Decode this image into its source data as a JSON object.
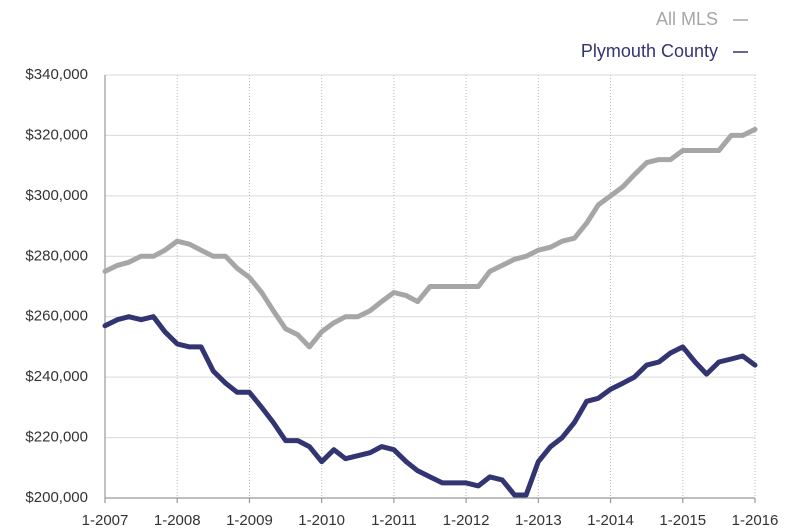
{
  "chart_data": {
    "type": "line",
    "x": [
      2007,
      2007.17,
      2007.33,
      2007.5,
      2007.67,
      2007.83,
      2008,
      2008.17,
      2008.33,
      2008.5,
      2008.67,
      2008.83,
      2009,
      2009.17,
      2009.33,
      2009.5,
      2009.67,
      2009.83,
      2010,
      2010.17,
      2010.33,
      2010.5,
      2010.67,
      2010.83,
      2011,
      2011.17,
      2011.33,
      2011.5,
      2011.67,
      2011.83,
      2012,
      2012.17,
      2012.33,
      2012.5,
      2012.67,
      2012.83,
      2013,
      2013.17,
      2013.33,
      2013.5,
      2013.67,
      2013.83,
      2014,
      2014.17,
      2014.33,
      2014.5,
      2014.67,
      2014.83,
      2015,
      2015.17,
      2015.33,
      2015.5,
      2015.67,
      2015.83,
      2016
    ],
    "series": [
      {
        "name": "All MLS",
        "color": "#a6a6a6",
        "values": [
          275000,
          277000,
          278000,
          280000,
          280000,
          282000,
          285000,
          284000,
          282000,
          280000,
          280000,
          276000,
          273000,
          268000,
          262000,
          256000,
          254000,
          250000,
          255000,
          258000,
          260000,
          260000,
          262000,
          265000,
          268000,
          267000,
          265000,
          270000,
          270000,
          270000,
          270000,
          270000,
          275000,
          277000,
          279000,
          280000,
          282000,
          283000,
          285000,
          286000,
          291000,
          297000,
          300000,
          303000,
          307000,
          311000,
          312000,
          312000,
          315000,
          315000,
          315000,
          315000,
          320000,
          320000,
          322000
        ]
      },
      {
        "name": "Plymouth County",
        "color": "#333472",
        "values": [
          257000,
          259000,
          260000,
          259000,
          260000,
          255000,
          251000,
          250000,
          250000,
          242000,
          238000,
          235000,
          235000,
          230000,
          225000,
          219000,
          219000,
          217000,
          212000,
          216000,
          213000,
          214000,
          215000,
          217000,
          216000,
          212000,
          209000,
          207000,
          205000,
          205000,
          205000,
          204000,
          207000,
          206000,
          201000,
          201000,
          212000,
          217000,
          220000,
          225000,
          232000,
          233000,
          236000,
          238000,
          240000,
          244000,
          245000,
          248000,
          250000,
          245000,
          241000,
          245000,
          246000,
          247000,
          244000
        ]
      }
    ],
    "xlim": [
      2007,
      2016
    ],
    "xticks": [
      {
        "value": 2007,
        "label": "1-2007"
      },
      {
        "value": 2008,
        "label": "1-2008"
      },
      {
        "value": 2009,
        "label": "1-2009"
      },
      {
        "value": 2010,
        "label": "1-2010"
      },
      {
        "value": 2011,
        "label": "1-2011"
      },
      {
        "value": 2012,
        "label": "1-2012"
      },
      {
        "value": 2013,
        "label": "1-2013"
      },
      {
        "value": 2014,
        "label": "1-2014"
      },
      {
        "value": 2015,
        "label": "1-2015"
      },
      {
        "value": 2016,
        "label": "1-2016"
      }
    ],
    "ylim": [
      200000,
      340000
    ],
    "yticks": [
      {
        "value": 200000,
        "label": "$200,000"
      },
      {
        "value": 220000,
        "label": "$220,000"
      },
      {
        "value": 240000,
        "label": "$240,000"
      },
      {
        "value": 260000,
        "label": "$260,000"
      },
      {
        "value": 280000,
        "label": "$280,000"
      },
      {
        "value": 300000,
        "label": "$300,000"
      },
      {
        "value": 320000,
        "label": "$320,000"
      },
      {
        "value": 340000,
        "label": "$340,000"
      }
    ],
    "grid": true,
    "legend": "top-right"
  }
}
